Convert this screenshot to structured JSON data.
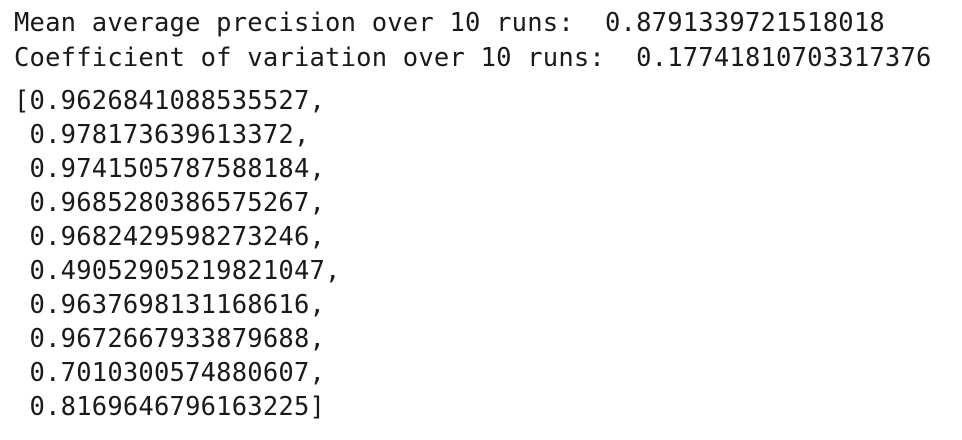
{
  "output": {
    "mean_line": "Mean average precision over 10 runs:  0.8791339721518018",
    "cv_line": "Coefficient of variation over 10 runs:  0.17741810703317376",
    "list_lines": [
      "[0.9626841088535527,",
      " 0.978173639613372,",
      " 0.9741505787588184,",
      " 0.9685280386575267,",
      " 0.9682429598273246,",
      " 0.49052905219821047,",
      " 0.9637698131168616,",
      " 0.9672667933879688,",
      " 0.7010300574880607,",
      " 0.8169646796163225]"
    ]
  }
}
